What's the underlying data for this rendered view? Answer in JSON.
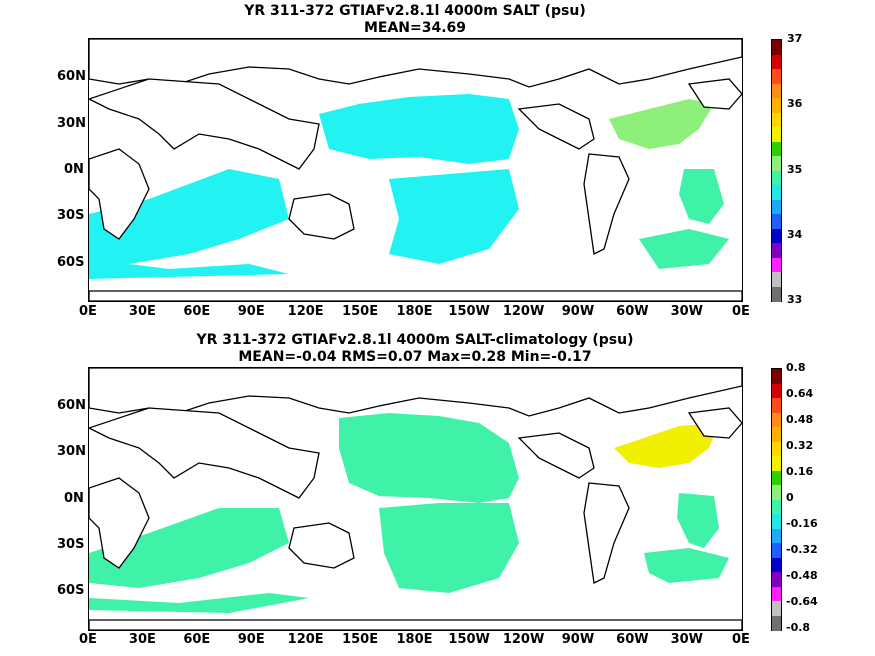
{
  "panels": [
    {
      "title_line1": "YR 311-372 GTIAFv2.8.1l 4000m SALT (psu)",
      "title_line2": "MEAN=34.69",
      "lat_ticks": [
        "60N",
        "30N",
        "0N",
        "30S",
        "60S"
      ],
      "lon_ticks": [
        "0E",
        "30E",
        "60E",
        "90E",
        "120E",
        "150E",
        "180E",
        "150W",
        "120W",
        "90W",
        "60W",
        "30W",
        "0E"
      ],
      "colorbar": {
        "labels": [
          "37",
          "36",
          "35",
          "34",
          "33"
        ],
        "colors": [
          "#7a0000",
          "#d40000",
          "#ff4a1a",
          "#ff8c1a",
          "#ffb000",
          "#ffd700",
          "#f0f000",
          "#30d000",
          "#8ef07a",
          "#3ff2a8",
          "#22e7e7",
          "#20a8ff",
          "#2060ff",
          "#0000cc",
          "#8000c0",
          "#ff20ff",
          "#c0c0c0",
          "#707070"
        ]
      },
      "fields": [
        {
          "name": "north-pacific-field",
          "color": "#22f2f2"
        },
        {
          "name": "south-pacific-field",
          "color": "#22f2f2"
        },
        {
          "name": "indian-ocean-field",
          "color": "#22f2f2"
        },
        {
          "name": "north-atlantic-saline-field",
          "color": "#8ef07a"
        },
        {
          "name": "south-atlantic-field",
          "color": "#3ff2a8"
        }
      ]
    },
    {
      "title_line1": "YR 311-372 GTIAFv2.8.1l 4000m SALT-climatology (psu)",
      "title_line2": "MEAN=-0.04   RMS=0.07   Max=0.28   Min=-0.17",
      "lat_ticks": [
        "60N",
        "30N",
        "0N",
        "30S",
        "60S"
      ],
      "lon_ticks": [
        "0E",
        "30E",
        "60E",
        "90E",
        "120E",
        "150E",
        "180E",
        "150W",
        "120W",
        "90W",
        "60W",
        "30W",
        "0E"
      ],
      "colorbar": {
        "labels": [
          "0.8",
          "0.64",
          "0.48",
          "0.32",
          "0.16",
          "0",
          "-0.16",
          "-0.32",
          "-0.48",
          "-0.64",
          "-0.8"
        ],
        "colors": [
          "#7a0000",
          "#d40000",
          "#ff4a1a",
          "#ff8c1a",
          "#ffb000",
          "#ffd700",
          "#f0f000",
          "#30d000",
          "#8ef07a",
          "#3ff2a8",
          "#22e7e7",
          "#20a8ff",
          "#2060ff",
          "#0000cc",
          "#8000c0",
          "#ff20ff",
          "#c0c0c0",
          "#707070"
        ]
      },
      "fields": [
        {
          "name": "north-pacific-field",
          "color": "#3ff2a8"
        },
        {
          "name": "south-pacific-field",
          "color": "#3ff2a8"
        },
        {
          "name": "indian-ocean-field",
          "color": "#3ff2a8"
        },
        {
          "name": "north-atlantic-positive-field",
          "color": "#f0f000"
        },
        {
          "name": "south-atlantic-field",
          "color": "#3ff2a8"
        }
      ]
    }
  ]
}
